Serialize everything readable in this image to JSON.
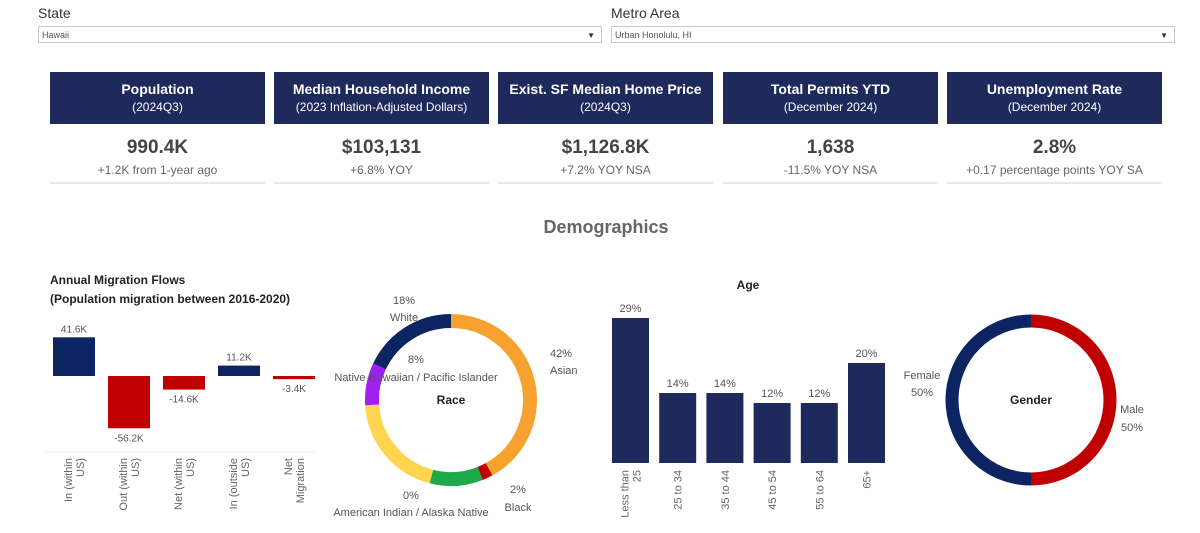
{
  "filters": {
    "state": {
      "label": "State",
      "value": "Hawaii"
    },
    "metro": {
      "label": "Metro Area",
      "value": "Urban Honolulu, HI"
    }
  },
  "kpis": [
    {
      "title": "Population",
      "subtitle": "(2024Q3)",
      "value": "990.4K",
      "change": "+1.2K from 1-year ago"
    },
    {
      "title": "Median Household Income",
      "subtitle": "(2023 Inflation-Adjusted Dollars)",
      "value": "$103,131",
      "change": "+6.8% YOY"
    },
    {
      "title": "Exist. SF Median Home Price",
      "subtitle": "(2024Q3)",
      "value": "$1,126.8K",
      "change": "+7.2% YOY NSA"
    },
    {
      "title": "Total Permits YTD",
      "subtitle": "(December 2024)",
      "value": "1,638",
      "change": "-11.5% YOY NSA"
    },
    {
      "title": "Unemployment Rate",
      "subtitle": "(December 2024)",
      "value": "2.8%",
      "change": "+0.17 percentage points YOY SA"
    }
  ],
  "section_title": "Demographics",
  "colors": {
    "navy": "#1f2a5c",
    "dark_blue": "#0c2461",
    "red": "#c00000"
  },
  "chart_data": [
    {
      "type": "bar",
      "title": "Annual Migration Flows",
      "subtitle": "(Population migration between 2016-2020)",
      "categories": [
        "In (within US)",
        "Out (within US)",
        "Net (within US)",
        "In (outside US)",
        "Net Migration"
      ],
      "values": [
        41.6,
        -56.2,
        -14.6,
        11.2,
        -3.4
      ],
      "labels": [
        "41.6K",
        "-56.2K",
        "-14.6K",
        "11.2K",
        "-3.4K"
      ],
      "unit": "K"
    },
    {
      "type": "pie",
      "title": "Race",
      "donut": true,
      "segments": [
        {
          "name": "Asian",
          "value": 42,
          "label": "42%",
          "color": "#f7a12e"
        },
        {
          "name": "Black",
          "value": 2,
          "label": "2%",
          "color": "#c00000"
        },
        {
          "value": 10,
          "color": "#1faa4a"
        },
        {
          "name": "American Indian / Alaska Native",
          "value": 0,
          "label": "0%",
          "color": "#f0c419"
        },
        {
          "value": 20,
          "color": "#ffd44f"
        },
        {
          "name": "Native Hawaiian / Pacific Islander",
          "value": 8,
          "label": "8%",
          "color": "#a020f0"
        },
        {
          "name": "White",
          "value": 18,
          "label": "18%",
          "color": "#0c2461"
        }
      ]
    },
    {
      "type": "bar",
      "title": "Age",
      "categories": [
        "Less than 25",
        "25 to 34",
        "35 to 44",
        "45 to 54",
        "55 to 64",
        "65+"
      ],
      "values": [
        29,
        14,
        14,
        12,
        12,
        20
      ],
      "labels": [
        "29%",
        "14%",
        "14%",
        "12%",
        "12%",
        "20%"
      ],
      "color": "#1f2a5c"
    },
    {
      "type": "pie",
      "title": "Gender",
      "donut": true,
      "segments": [
        {
          "name": "Male",
          "value": 50,
          "label": "50%",
          "color": "#c00000"
        },
        {
          "name": "Female",
          "value": 50,
          "label": "50%",
          "color": "#0c2461"
        }
      ]
    }
  ]
}
